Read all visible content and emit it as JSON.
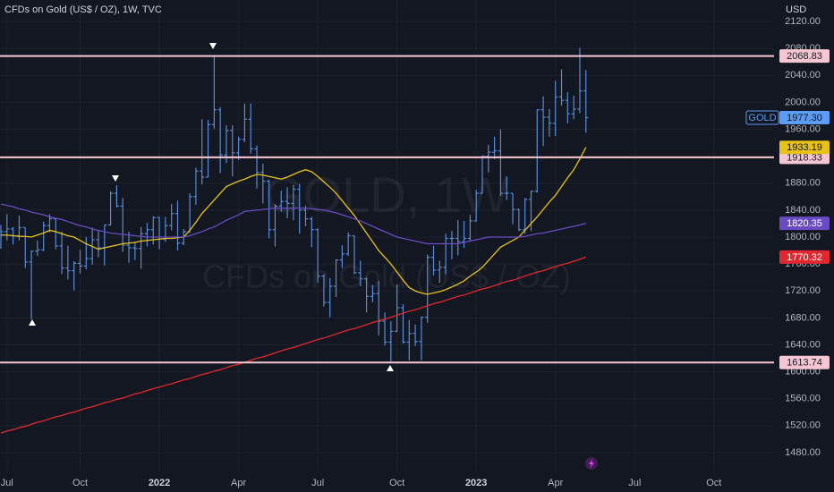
{
  "chart_data": {
    "type": "ohlc",
    "title": "CFDs on Gold (US$ / OZ), 1W, TVC",
    "watermark": [
      "GOLD, 1W",
      "CFDs on Gold (US$ / OZ)"
    ],
    "currency": "USD",
    "symbol": "GOLD",
    "categories": [
      null,
      "Jul",
      null,
      null,
      null,
      null,
      null,
      null,
      null,
      null,
      null,
      null,
      null,
      "Oct",
      null,
      null,
      null,
      null,
      null,
      null,
      null,
      null,
      null,
      null,
      null,
      null,
      "2022",
      null,
      null,
      null,
      null,
      null,
      null,
      null,
      null,
      null,
      null,
      null,
      null,
      "Apr",
      null,
      null,
      null,
      null,
      null,
      null,
      null,
      null,
      null,
      null,
      null,
      null,
      "Jul",
      null,
      null,
      null,
      null,
      null,
      null,
      null,
      null,
      null,
      null,
      null,
      null,
      "Oct",
      null,
      null,
      null,
      null,
      null,
      null,
      null,
      null,
      null,
      null,
      null,
      null,
      "2023",
      null,
      null,
      null,
      null,
      null,
      null,
      null,
      null,
      null,
      null,
      null,
      null,
      "Apr",
      null,
      null,
      null,
      null,
      null,
      null,
      null,
      null,
      null,
      null,
      null,
      null,
      "Jul",
      null,
      null,
      null,
      null,
      null,
      null,
      null,
      null,
      null,
      null,
      null,
      null,
      "Oct",
      null,
      null,
      null,
      null,
      null,
      null,
      null,
      null,
      null
    ],
    "ohlc": {
      "color": "#5b8bd4",
      "open": [
        1784,
        1808,
        1812,
        1802,
        1814,
        1763,
        1779,
        1781,
        1817,
        1827,
        1787,
        1754,
        1750,
        1761,
        1757,
        1768,
        1796,
        1784,
        1818,
        1865,
        1846,
        1788,
        1784,
        1783,
        1805,
        1811,
        1829,
        1797,
        1817,
        1835,
        1791,
        1808,
        1860,
        1898,
        1889,
        1967,
        1989,
        1922,
        1958,
        1925,
        1945,
        1975,
        1931,
        1896,
        1883,
        1811,
        1846,
        1853,
        1850,
        1871,
        1840,
        1827,
        1811,
        1742,
        1703,
        1727,
        1766,
        1775,
        1802,
        1747,
        1738,
        1712,
        1716,
        1675,
        1644,
        1660,
        1695,
        1644,
        1657,
        1645,
        1681,
        1770,
        1751,
        1755,
        1798,
        1798,
        1793,
        1798,
        1824,
        1865,
        1920,
        1926,
        1928,
        1865,
        1865,
        1841,
        1811,
        1856,
        1868,
        1989,
        1978,
        1969,
        2008,
        2003,
        1983,
        1990,
        2017,
        null,
        null,
        null,
        null,
        null,
        null,
        null,
        null,
        null,
        null,
        null,
        null,
        null,
        null,
        null,
        null,
        null,
        null,
        null,
        null,
        null,
        null,
        null,
        null,
        null,
        null,
        null,
        null,
        null,
        null
      ],
      "high": [
        1818,
        1834,
        1815,
        1832,
        1814,
        1780,
        1795,
        1823,
        1834,
        1827,
        1808,
        1787,
        1764,
        1781,
        1800,
        1814,
        1810,
        1818,
        1868,
        1877,
        1858,
        1808,
        1793,
        1815,
        1821,
        1831,
        1830,
        1830,
        1849,
        1854,
        1812,
        1865,
        1903,
        1975,
        1974,
        2070,
        1993,
        1966,
        1966,
        1949,
        1998,
        1998,
        1936,
        1909,
        1885,
        1849,
        1869,
        1874,
        1877,
        1879,
        1847,
        1830,
        1813,
        1745,
        1739,
        1767,
        1788,
        1807,
        1802,
        1765,
        1740,
        1729,
        1735,
        1688,
        1675,
        1730,
        1700,
        1677,
        1670,
        1682,
        1774,
        1787,
        1765,
        1805,
        1809,
        1825,
        1824,
        1833,
        1870,
        1921,
        1937,
        1949,
        1960,
        1890,
        1865,
        1842,
        1858,
        1869,
        1989,
        2009,
        1990,
        2032,
        2049,
        2015,
        2010,
        2081,
        2048,
        null,
        null,
        null,
        null,
        null,
        null,
        null,
        null,
        null,
        null,
        null,
        null,
        null,
        null,
        null,
        null,
        null,
        null,
        null,
        null,
        null,
        null,
        null,
        null,
        null,
        null,
        null,
        null,
        null,
        null
      ],
      "low": [
        1783,
        1795,
        1789,
        1795,
        1754,
        1678,
        1772,
        1779,
        1807,
        1782,
        1745,
        1737,
        1721,
        1746,
        1752,
        1759,
        1770,
        1758,
        1817,
        1844,
        1778,
        1762,
        1766,
        1753,
        1786,
        1789,
        1782,
        1793,
        1810,
        1780,
        1788,
        1806,
        1848,
        1878,
        1889,
        1961,
        1895,
        1910,
        1890,
        1915,
        1941,
        1924,
        1872,
        1850,
        1798,
        1786,
        1838,
        1828,
        1825,
        1805,
        1816,
        1785,
        1732,
        1697,
        1681,
        1711,
        1754,
        1772,
        1745,
        1727,
        1688,
        1703,
        1654,
        1639,
        1615,
        1659,
        1642,
        1617,
        1638,
        1617,
        1673,
        1743,
        1732,
        1745,
        1767,
        1773,
        1784,
        1795,
        1823,
        1865,
        1896,
        1916,
        1861,
        1855,
        1819,
        1809,
        1805,
        1809,
        1866,
        1935,
        1949,
        1950,
        1995,
        1969,
        1975,
        1984,
        1955,
        null,
        null,
        null,
        null,
        null,
        null,
        null,
        null,
        null,
        null,
        null,
        null,
        null,
        null,
        null,
        null,
        null,
        null,
        null,
        null,
        null,
        null,
        null,
        null,
        null,
        null,
        null,
        null,
        null,
        null
      ],
      "close": [
        1808,
        1812,
        1802,
        1814,
        1763,
        1779,
        1781,
        1817,
        1827,
        1787,
        1754,
        1750,
        1761,
        1757,
        1768,
        1796,
        1784,
        1818,
        1865,
        1846,
        1788,
        1784,
        1783,
        1805,
        1811,
        1829,
        1797,
        1817,
        1835,
        1791,
        1808,
        1860,
        1898,
        1889,
        1967,
        1989,
        1922,
        1958,
        1925,
        1945,
        1975,
        1931,
        1896,
        1883,
        1811,
        1846,
        1853,
        1850,
        1871,
        1840,
        1827,
        1811,
        1742,
        1703,
        1727,
        1766,
        1775,
        1802,
        1747,
        1738,
        1712,
        1716,
        1675,
        1644,
        1660,
        1695,
        1644,
        1657,
        1645,
        1681,
        1770,
        1751,
        1755,
        1798,
        1798,
        1793,
        1798,
        1824,
        1865,
        1920,
        1926,
        1928,
        1865,
        1865,
        1841,
        1811,
        1856,
        1868,
        1989,
        1978,
        1969,
        2008,
        2003,
        1983,
        1990,
        2017,
        1977.3,
        null,
        null,
        null,
        null,
        null,
        null,
        null,
        null,
        null,
        null,
        null,
        null,
        null,
        null,
        null,
        null,
        null,
        null,
        null,
        null,
        null,
        null,
        null,
        null,
        null,
        null,
        null,
        null,
        null,
        null
      ],
      "last_label": "1977.30"
    },
    "series": [
      {
        "color": "#e8c21a",
        "values": [
          1803,
          1803,
          1802,
          1801,
          1801,
          1800,
          1803,
          1806,
          1810,
          1808,
          1805,
          1802,
          1800,
          1795,
          1790,
          1786,
          1782,
          1784,
          1786,
          1788,
          1790,
          1791,
          1792,
          1794,
          1795,
          1796,
          1797,
          1798,
          1798,
          1799,
          1800,
          1810,
          1822,
          1835,
          1845,
          1855,
          1865,
          1875,
          1879,
          1883,
          1886,
          1890,
          1893,
          1892,
          1890,
          1888,
          1886,
          1889,
          1893,
          1897,
          1900,
          1897,
          1890,
          1882,
          1874,
          1865,
          1854,
          1843,
          1832,
          1819,
          1806,
          1793,
          1780,
          1770,
          1760,
          1748,
          1736,
          1725,
          1720,
          1717,
          1715,
          1717,
          1719,
          1722,
          1726,
          1730,
          1735,
          1742,
          1748,
          1755,
          1765,
          1775,
          1785,
          1790,
          1795,
          1800,
          1810,
          1820,
          1830,
          1841,
          1852,
          1862,
          1875,
          1888,
          1900,
          1916,
          1933.19,
          null,
          null,
          null,
          null,
          null,
          null,
          null,
          null,
          null,
          null,
          null,
          null,
          null,
          null,
          null,
          null,
          null,
          null,
          null,
          null,
          null,
          null,
          null,
          null,
          null,
          null,
          null,
          null,
          null,
          null
        ]
      },
      {
        "color": "#6a4bc4",
        "values": [
          1849,
          1847,
          1845,
          1842,
          1840,
          1837,
          1835,
          1833,
          1830,
          1828,
          1826,
          1823,
          1820,
          1817,
          1815,
          1812,
          1810,
          1808,
          1806,
          1805,
          1804,
          1803,
          1802,
          1801,
          1800,
          1800,
          1800,
          1800,
          1800,
          1800,
          1800,
          1802,
          1805,
          1808,
          1812,
          1815,
          1820,
          1825,
          1829,
          1833,
          1838,
          1839,
          1840,
          1841,
          1842,
          1843,
          1843,
          1843,
          1843,
          1843,
          1843,
          1842,
          1841,
          1840,
          1838,
          1836,
          1833,
          1830,
          1827,
          1824,
          1820,
          1816,
          1812,
          1808,
          1804,
          1800,
          1798,
          1796,
          1794,
          1792,
          1790,
          1790,
          1790,
          1790,
          1790,
          1790,
          1792,
          1794,
          1796,
          1798,
          1800,
          1800,
          1800,
          1800,
          1800,
          1800,
          1801,
          1803,
          1805,
          1806,
          1808,
          1810,
          1812,
          1814,
          1816,
          1818,
          1820.35,
          null,
          null,
          null,
          null,
          null,
          null,
          null,
          null,
          null,
          null,
          null,
          null,
          null,
          null,
          null,
          null,
          null,
          null,
          null,
          null,
          null,
          null,
          null,
          null,
          null,
          null,
          null,
          null,
          null,
          null
        ]
      },
      {
        "color": "#e0282e",
        "values": [
          1509,
          1512,
          1514,
          1517,
          1519,
          1522,
          1525,
          1527,
          1530,
          1533,
          1535,
          1538,
          1540,
          1543,
          1546,
          1548,
          1551,
          1554,
          1556,
          1559,
          1561,
          1564,
          1567,
          1569,
          1572,
          1575,
          1577,
          1580,
          1582,
          1585,
          1588,
          1590,
          1593,
          1596,
          1598,
          1601,
          1603,
          1606,
          1609,
          1611,
          1614,
          1617,
          1620,
          1622,
          1625,
          1628,
          1631,
          1634,
          1636,
          1639,
          1642,
          1645,
          1648,
          1650,
          1653,
          1656,
          1659,
          1662,
          1664,
          1667,
          1670,
          1673,
          1676,
          1678,
          1681,
          1684,
          1687,
          1690,
          1692,
          1695,
          1698,
          1701,
          1703,
          1706,
          1709,
          1712,
          1714,
          1717,
          1720,
          1723,
          1725,
          1728,
          1731,
          1734,
          1736,
          1739,
          1742,
          1745,
          1748,
          1750,
          1753,
          1756,
          1759,
          1761,
          1764,
          1767,
          1770.32,
          null,
          null,
          null,
          null,
          null,
          null,
          null,
          null,
          null,
          null,
          null,
          null,
          null,
          null,
          null,
          null,
          null,
          null,
          null,
          null,
          null,
          null,
          null,
          null,
          null,
          null,
          null,
          null,
          null,
          null
        ]
      }
    ],
    "hlines": [
      {
        "value": 2068.83,
        "color": "#f6c7d2"
      },
      {
        "value": 1918.33,
        "color": "#f6c7d2"
      },
      {
        "value": 1613.74,
        "color": "#f6c7d2"
      }
    ],
    "ylim": [
      1452,
      2152
    ],
    "yticks": [
      {
        "value": 1480,
        "label": "1480.00"
      },
      {
        "value": 1520,
        "label": "1520.00"
      },
      {
        "value": 1560,
        "label": "1560.00"
      },
      {
        "value": 1600,
        "label": "1600.00"
      },
      {
        "value": 1640,
        "label": "1640.00"
      },
      {
        "value": 1680,
        "label": "1680.00"
      },
      {
        "value": 1720,
        "label": "1720.00"
      },
      {
        "value": 1760,
        "label": "1760.00"
      },
      {
        "value": 1800,
        "label": "1800.00"
      },
      {
        "value": 1840,
        "label": "1840.00"
      },
      {
        "value": 1880,
        "label": "1880.00"
      },
      {
        "value": 1920,
        "label": "1920.00"
      },
      {
        "value": 1960,
        "label": "1960.00"
      },
      {
        "value": 2000,
        "label": "2000.00"
      },
      {
        "value": 2040,
        "label": "2040.00"
      },
      {
        "value": 2080,
        "label": "2080.00"
      },
      {
        "value": 2120,
        "label": "2120.00"
      }
    ],
    "grid": true
  }
}
